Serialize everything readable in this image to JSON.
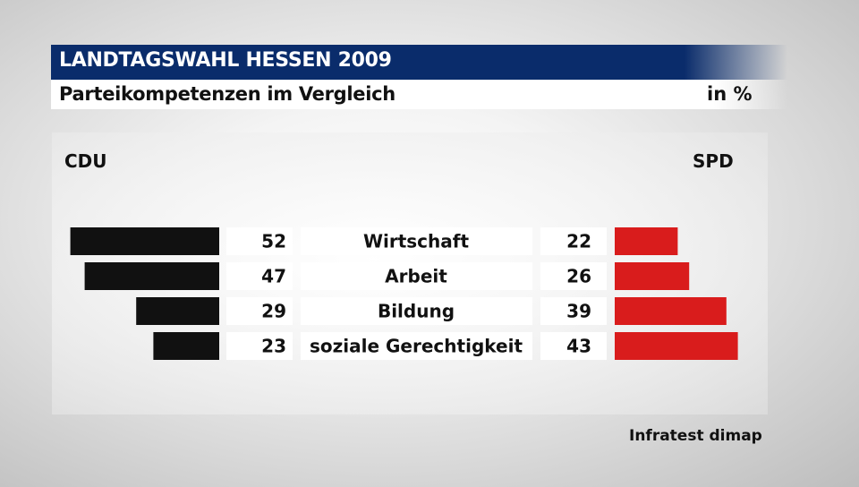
{
  "header": {
    "title": "LANDTAGSWAHL HESSEN 2009",
    "subtitle": "Parteikompetenzen im Vergleich",
    "unit": "in %"
  },
  "source": "Infratest dimap",
  "colors": {
    "header_bg": "#0a2c6b",
    "left_bar": "#111111",
    "right_bar": "#d91c1c",
    "label_box": "#ffffff"
  },
  "chart_data": {
    "type": "bar",
    "orientation": "horizontal-diverging",
    "categories": [
      "Wirtschaft",
      "Arbeit",
      "Bildung",
      "soziale Gerechtigkeit"
    ],
    "series": [
      {
        "name": "CDU",
        "values": [
          52,
          47,
          29,
          23
        ]
      },
      {
        "name": "SPD",
        "values": [
          22,
          26,
          39,
          43
        ]
      }
    ],
    "unit": "in %"
  }
}
